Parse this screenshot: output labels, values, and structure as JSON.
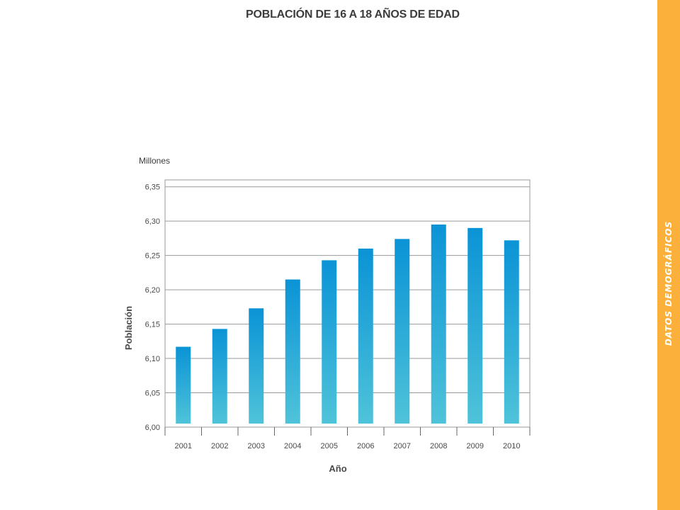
{
  "title": "POBLACIÓN DE 16 A 18 AÑOS DE EDAD",
  "side_label": "DATOS DEMOGRÁFICOS",
  "colors": {
    "side_band": "#fbb03b",
    "bar_top": "#0a93d6",
    "bar_bottom": "#4fc3d9",
    "grid": "#9a9a9a"
  },
  "chart_data": {
    "type": "bar",
    "title": "POBLACIÓN DE 16 A 18 AÑOS DE EDAD",
    "unit_label": "Millones",
    "xlabel": "Año",
    "ylabel": "Población",
    "categories": [
      "2001",
      "2002",
      "2003",
      "2004",
      "2005",
      "2006",
      "2007",
      "2008",
      "2009",
      "2010"
    ],
    "values": [
      6.117,
      6.143,
      6.173,
      6.215,
      6.243,
      6.26,
      6.274,
      6.295,
      6.29,
      6.272
    ],
    "ylim": [
      6.0,
      6.36
    ],
    "yticks": [
      6.0,
      6.05,
      6.1,
      6.15,
      6.2,
      6.25,
      6.3,
      6.35
    ],
    "ytick_labels": [
      "6,00",
      "6,05",
      "6,10",
      "6,15",
      "6,20",
      "6,25",
      "6,30",
      "6,35"
    ],
    "grid": true,
    "legend": "none"
  }
}
